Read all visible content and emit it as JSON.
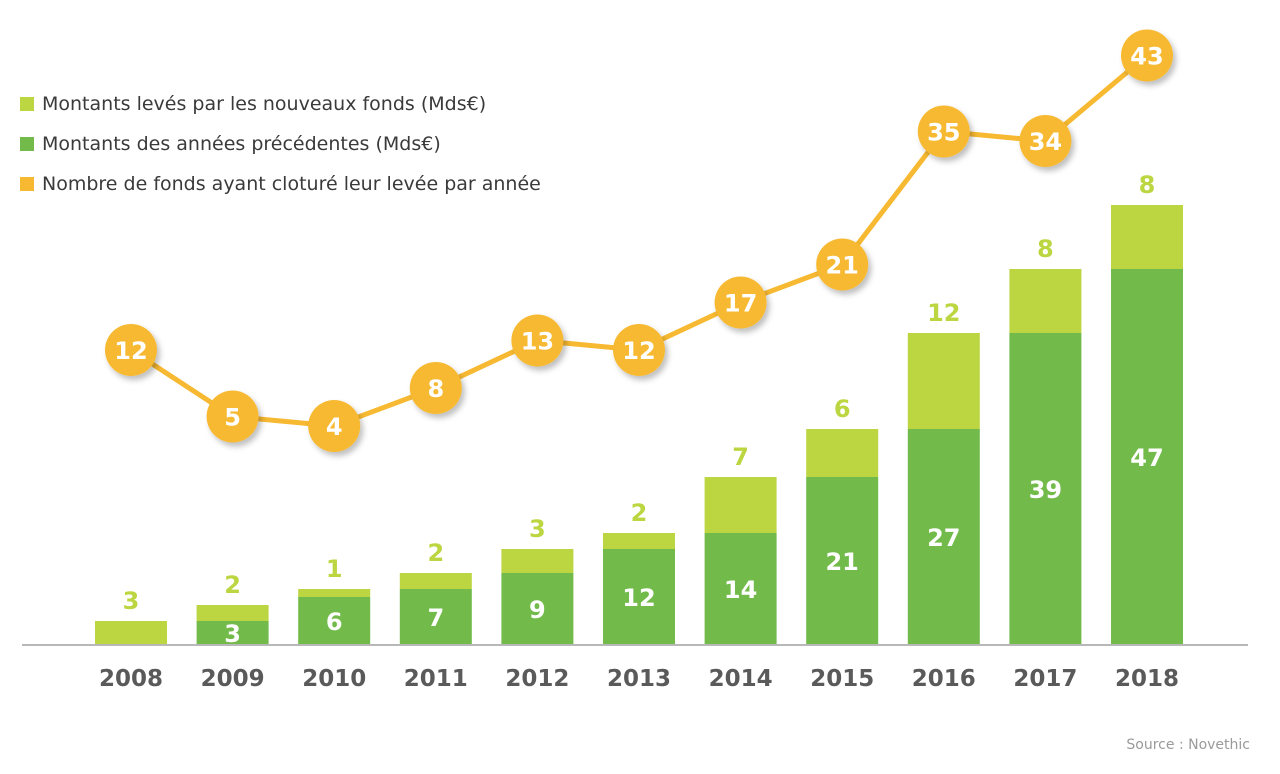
{
  "legend": [
    {
      "label": "Montants levés par les nouveaux fonds (Mds€)",
      "color": "#bcd642"
    },
    {
      "label": "Montants des années précédentes (Mds€)",
      "color": "#72bb4b"
    },
    {
      "label": "Nombre de fonds ayant cloturé leur levée par année",
      "color": "#f7b931"
    }
  ],
  "source": "Source : Novethic",
  "chart_data": {
    "type": "bar",
    "stacked": true,
    "categories": [
      "2008",
      "2009",
      "2010",
      "2011",
      "2012",
      "2013",
      "2014",
      "2015",
      "2016",
      "2017",
      "2018"
    ],
    "series": [
      {
        "name": "Montants des années précédentes (Mds€)",
        "color": "#72bb4b",
        "values": [
          0,
          3,
          6,
          7,
          9,
          12,
          14,
          21,
          27,
          39,
          47
        ]
      },
      {
        "name": "Montants levés par les nouveaux fonds (Mds€)",
        "color": "#bcd642",
        "values": [
          3,
          2,
          1,
          2,
          3,
          2,
          7,
          6,
          12,
          8,
          8
        ]
      }
    ],
    "line_series": {
      "name": "Nombre de fonds ayant cloturé leur levée par année",
      "color": "#f7b931",
      "values": [
        12,
        5,
        4,
        8,
        13,
        12,
        17,
        21,
        35,
        34,
        43
      ]
    },
    "legend_position": "top-left",
    "grid": false
  }
}
